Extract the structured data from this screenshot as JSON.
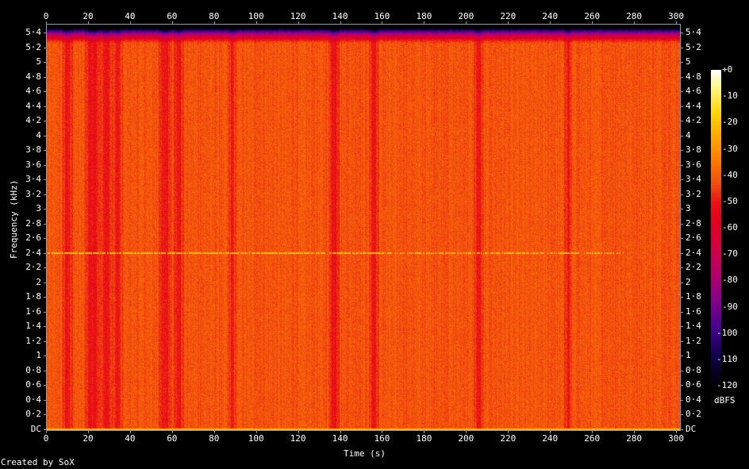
{
  "chart_data": {
    "type": "heatmap",
    "subtype": "spectrogram",
    "xlabel": "Time (s)",
    "ylabel": "Frequency (kHz)",
    "xlim": [
      0,
      300
    ],
    "ylim_khz": [
      0,
      5.5
    ],
    "x_ticks": [
      "0",
      "20",
      "40",
      "60",
      "80",
      "100",
      "120",
      "140",
      "160",
      "180",
      "200",
      "220",
      "240",
      "260",
      "280",
      "300"
    ],
    "y_ticks": [
      "DC",
      "0·2",
      "0·4",
      "0·6",
      "0·8",
      "1",
      "1·2",
      "1·4",
      "1·6",
      "1·8",
      "2",
      "2·2",
      "2·4",
      "2·6",
      "2·8",
      "3",
      "3·2",
      "3·4",
      "3·6",
      "3·8",
      "4",
      "4·2",
      "4·4",
      "4·6",
      "4·8",
      "5",
      "5·2",
      "5·4"
    ],
    "colorbar": {
      "label": "dBFS",
      "range": [
        -120,
        0
      ],
      "ticks": [
        "+0",
        "-10",
        "-20",
        "-30",
        "-40",
        "-50",
        "-60",
        "-70",
        "-80",
        "-90",
        "-100",
        "-110",
        "-120"
      ]
    },
    "background_level_dbfs": -42,
    "rolloff_above_khz": 5.25,
    "tone": {
      "frequency_khz": 2.4,
      "level_dbfs": -20,
      "visible_until_s": 275
    },
    "dark_bands_s": [
      [
        9,
        11
      ],
      [
        20,
        24
      ],
      [
        27,
        30
      ],
      [
        33,
        35
      ],
      [
        55,
        58
      ],
      [
        62,
        64
      ],
      [
        88,
        89
      ],
      [
        136,
        138
      ],
      [
        155,
        157
      ],
      [
        205,
        207
      ],
      [
        248,
        249
      ]
    ],
    "footer": "Created by SoX"
  }
}
